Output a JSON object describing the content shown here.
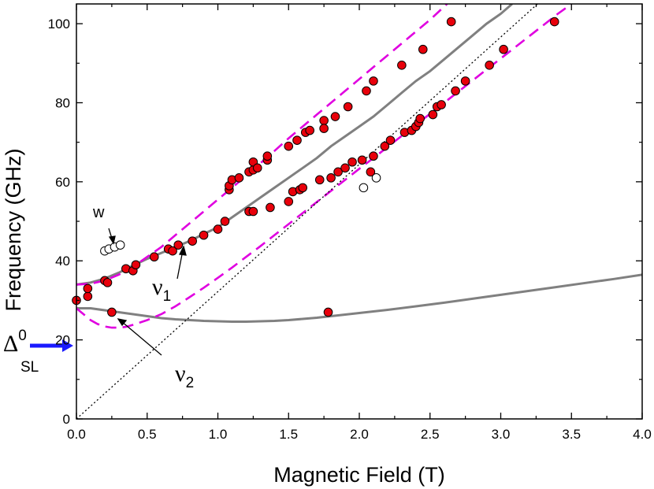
{
  "chart_data": {
    "type": "scatter",
    "title": "",
    "xlabel": "Magnetic Field (T)",
    "ylabel": "Frequency (GHz)",
    "xlim": [
      0,
      4.0
    ],
    "ylim": [
      0,
      105
    ],
    "xticks": [
      "0.0",
      "0.5",
      "1.0",
      "1.5",
      "2.0",
      "2.5",
      "3.0",
      "3.5",
      "4.0"
    ],
    "yticks": [
      "0",
      "20",
      "40",
      "60",
      "80",
      "100"
    ],
    "xtick_values": [
      0,
      0.5,
      1.0,
      1.5,
      2.0,
      2.5,
      3.0,
      3.5,
      4.0
    ],
    "ytick_values": [
      0,
      20,
      40,
      60,
      80,
      100
    ],
    "grid": false,
    "colors": {
      "filled_marker": "#e8000b",
      "solid_curve": "#808080",
      "dashed_curve": "#e000e0",
      "dotted_line": "#000000",
      "arrow_blue": "#1a1aff"
    },
    "series": [
      {
        "style": "filled-circle",
        "points": [
          [
            0.0,
            30
          ],
          [
            0.08,
            31
          ],
          [
            0.08,
            33
          ],
          [
            0.2,
            35
          ],
          [
            0.22,
            34.5
          ],
          [
            0.25,
            27
          ],
          [
            0.35,
            38
          ],
          [
            0.4,
            37.5
          ],
          [
            0.42,
            39
          ],
          [
            0.55,
            41
          ],
          [
            0.65,
            43
          ],
          [
            0.68,
            42.5
          ],
          [
            0.72,
            44
          ],
          [
            0.82,
            45
          ],
          [
            0.9,
            46.5
          ],
          [
            1.0,
            48
          ],
          [
            1.05,
            50
          ],
          [
            1.08,
            58
          ],
          [
            1.08,
            59
          ],
          [
            1.1,
            60.5
          ],
          [
            1.15,
            61
          ],
          [
            1.22,
            62.5
          ],
          [
            1.22,
            52.5
          ],
          [
            1.25,
            52.5
          ],
          [
            1.25,
            63
          ],
          [
            1.25,
            65
          ],
          [
            1.28,
            63.5
          ],
          [
            1.35,
            65.5
          ],
          [
            1.35,
            66.5
          ],
          [
            1.37,
            53.5
          ],
          [
            1.5,
            55
          ],
          [
            1.5,
            69
          ],
          [
            1.53,
            57.5
          ],
          [
            1.56,
            70.5
          ],
          [
            1.58,
            58
          ],
          [
            1.6,
            58.5
          ],
          [
            1.62,
            72.5
          ],
          [
            1.65,
            73
          ],
          [
            1.72,
            60.5
          ],
          [
            1.75,
            75.5
          ],
          [
            1.75,
            73.5
          ],
          [
            1.78,
            27
          ],
          [
            1.8,
            61
          ],
          [
            1.83,
            76.5
          ],
          [
            1.85,
            62.5
          ],
          [
            1.9,
            63.5
          ],
          [
            1.92,
            79
          ],
          [
            1.95,
            65
          ],
          [
            2.02,
            65.5
          ],
          [
            2.05,
            83
          ],
          [
            2.08,
            62.5
          ],
          [
            2.1,
            66.5
          ],
          [
            2.1,
            85.5
          ],
          [
            2.18,
            69
          ],
          [
            2.22,
            70.5
          ],
          [
            2.3,
            89.5
          ],
          [
            2.32,
            72.5
          ],
          [
            2.37,
            73
          ],
          [
            2.4,
            74
          ],
          [
            2.42,
            75
          ],
          [
            2.43,
            76
          ],
          [
            2.45,
            93.5
          ],
          [
            2.52,
            77
          ],
          [
            2.55,
            79
          ],
          [
            2.58,
            79.5
          ],
          [
            2.65,
            100.5
          ],
          [
            2.68,
            83
          ],
          [
            2.75,
            85.5
          ],
          [
            2.92,
            89.5
          ],
          [
            3.02,
            93.5
          ],
          [
            3.38,
            100.5
          ]
        ]
      },
      {
        "style": "open-circle",
        "points": [
          [
            0.2,
            42.5
          ],
          [
            0.23,
            43
          ],
          [
            0.27,
            43.5
          ],
          [
            0.31,
            44
          ],
          [
            2.03,
            58.5
          ],
          [
            2.12,
            61
          ]
        ]
      },
      {
        "style": "solid-line",
        "points": [
          [
            0.0,
            34
          ],
          [
            0.1,
            34.5
          ],
          [
            0.2,
            35.5
          ],
          [
            0.3,
            37
          ],
          [
            0.4,
            38.8
          ],
          [
            0.5,
            40.5
          ],
          [
            0.6,
            42
          ],
          [
            0.7,
            43.5
          ],
          [
            0.8,
            45
          ],
          [
            0.9,
            46.8
          ],
          [
            1.0,
            48.5
          ],
          [
            1.1,
            51
          ],
          [
            1.2,
            53.5
          ],
          [
            1.3,
            56
          ],
          [
            1.4,
            58.5
          ],
          [
            1.5,
            61
          ],
          [
            1.6,
            63.5
          ],
          [
            1.7,
            66
          ],
          [
            1.8,
            69
          ],
          [
            1.9,
            71.5
          ],
          [
            2.0,
            74
          ],
          [
            2.1,
            76.5
          ],
          [
            2.2,
            79.5
          ],
          [
            2.3,
            82.5
          ],
          [
            2.4,
            85.5
          ],
          [
            2.5,
            88
          ],
          [
            2.6,
            91
          ],
          [
            2.7,
            94
          ],
          [
            2.8,
            97
          ],
          [
            2.9,
            100
          ],
          [
            3.0,
            102.5
          ],
          [
            3.08,
            105
          ]
        ]
      },
      {
        "style": "solid-line",
        "points": [
          [
            0.0,
            28
          ],
          [
            0.1,
            28
          ],
          [
            0.2,
            27.5
          ],
          [
            0.3,
            27
          ],
          [
            0.4,
            26.5
          ],
          [
            0.5,
            26
          ],
          [
            0.6,
            25.5
          ],
          [
            0.7,
            25.2
          ],
          [
            0.8,
            25
          ],
          [
            0.9,
            24.8
          ],
          [
            1.0,
            24.7
          ],
          [
            1.1,
            24.6
          ],
          [
            1.2,
            24.6
          ],
          [
            1.3,
            24.7
          ],
          [
            1.4,
            24.8
          ],
          [
            1.5,
            25
          ],
          [
            1.6,
            25.3
          ],
          [
            1.7,
            25.6
          ],
          [
            1.8,
            26
          ],
          [
            1.9,
            26.4
          ],
          [
            2.0,
            26.8
          ],
          [
            2.2,
            27.6
          ],
          [
            2.4,
            28.5
          ],
          [
            2.6,
            29.4
          ],
          [
            2.8,
            30.4
          ],
          [
            3.0,
            31.4
          ],
          [
            3.2,
            32.4
          ],
          [
            3.4,
            33.4
          ],
          [
            3.6,
            34.4
          ],
          [
            3.8,
            35.4
          ],
          [
            4.0,
            36.5
          ]
        ]
      },
      {
        "style": "dashed-line",
        "points": [
          [
            0.0,
            34
          ],
          [
            0.1,
            34.2
          ],
          [
            0.2,
            35
          ],
          [
            0.3,
            36.5
          ],
          [
            0.4,
            38.5
          ],
          [
            0.5,
            41
          ],
          [
            0.6,
            43.5
          ],
          [
            0.7,
            46.5
          ],
          [
            0.8,
            49.5
          ],
          [
            0.9,
            52.5
          ],
          [
            1.0,
            55.5
          ],
          [
            1.1,
            58.5
          ],
          [
            1.2,
            61.5
          ],
          [
            1.3,
            64.7
          ],
          [
            1.4,
            67.8
          ],
          [
            1.5,
            71
          ],
          [
            1.6,
            74
          ],
          [
            1.7,
            77
          ],
          [
            1.8,
            80
          ],
          [
            1.9,
            83
          ],
          [
            2.0,
            86
          ],
          [
            2.1,
            89
          ],
          [
            2.2,
            92
          ],
          [
            2.3,
            95
          ],
          [
            2.4,
            98
          ],
          [
            2.5,
            101
          ],
          [
            2.62,
            105
          ]
        ]
      },
      {
        "style": "dashed-line",
        "points": [
          [
            0.0,
            28
          ],
          [
            0.05,
            26.5
          ],
          [
            0.1,
            25
          ],
          [
            0.15,
            24
          ],
          [
            0.2,
            23.4
          ],
          [
            0.25,
            23.1
          ],
          [
            0.3,
            23.1
          ],
          [
            0.35,
            23.3
          ],
          [
            0.4,
            23.8
          ],
          [
            0.5,
            25
          ],
          [
            0.6,
            26.5
          ],
          [
            0.7,
            28.5
          ],
          [
            0.8,
            30.8
          ],
          [
            0.9,
            33.2
          ],
          [
            1.0,
            35.7
          ],
          [
            1.1,
            38.3
          ],
          [
            1.2,
            41
          ],
          [
            1.3,
            43.7
          ],
          [
            1.4,
            46.5
          ],
          [
            1.5,
            49.3
          ],
          [
            1.6,
            52.1
          ],
          [
            1.7,
            54.9
          ],
          [
            1.8,
            57.7
          ],
          [
            1.9,
            60.5
          ],
          [
            2.0,
            63.3
          ],
          [
            2.1,
            66
          ],
          [
            2.2,
            68.8
          ],
          [
            2.3,
            71.6
          ],
          [
            2.4,
            74.4
          ],
          [
            2.5,
            77.2
          ],
          [
            2.6,
            80
          ],
          [
            2.7,
            82.8
          ],
          [
            2.8,
            85.6
          ],
          [
            2.9,
            88.4
          ],
          [
            3.0,
            91.2
          ],
          [
            3.1,
            94
          ],
          [
            3.2,
            96.8
          ],
          [
            3.3,
            99.6
          ],
          [
            3.4,
            102.4
          ],
          [
            3.5,
            105
          ]
        ]
      },
      {
        "style": "dotted-line",
        "points": [
          [
            0.0,
            0
          ],
          [
            3.26,
            105
          ]
        ]
      }
    ],
    "annotations": {
      "w": {
        "label": "w",
        "x": 0.25,
        "y": 51
      },
      "nu1": {
        "symbol": "ν",
        "subscript": "1",
        "x": 0.55,
        "y": 32
      },
      "nu2": {
        "symbol": "ν",
        "subscript": "2",
        "x": 0.7,
        "y": 11
      },
      "delta": {
        "symbol": "Δ",
        "superscript": "0",
        "subscript": "SL",
        "y": 18.5
      }
    }
  }
}
